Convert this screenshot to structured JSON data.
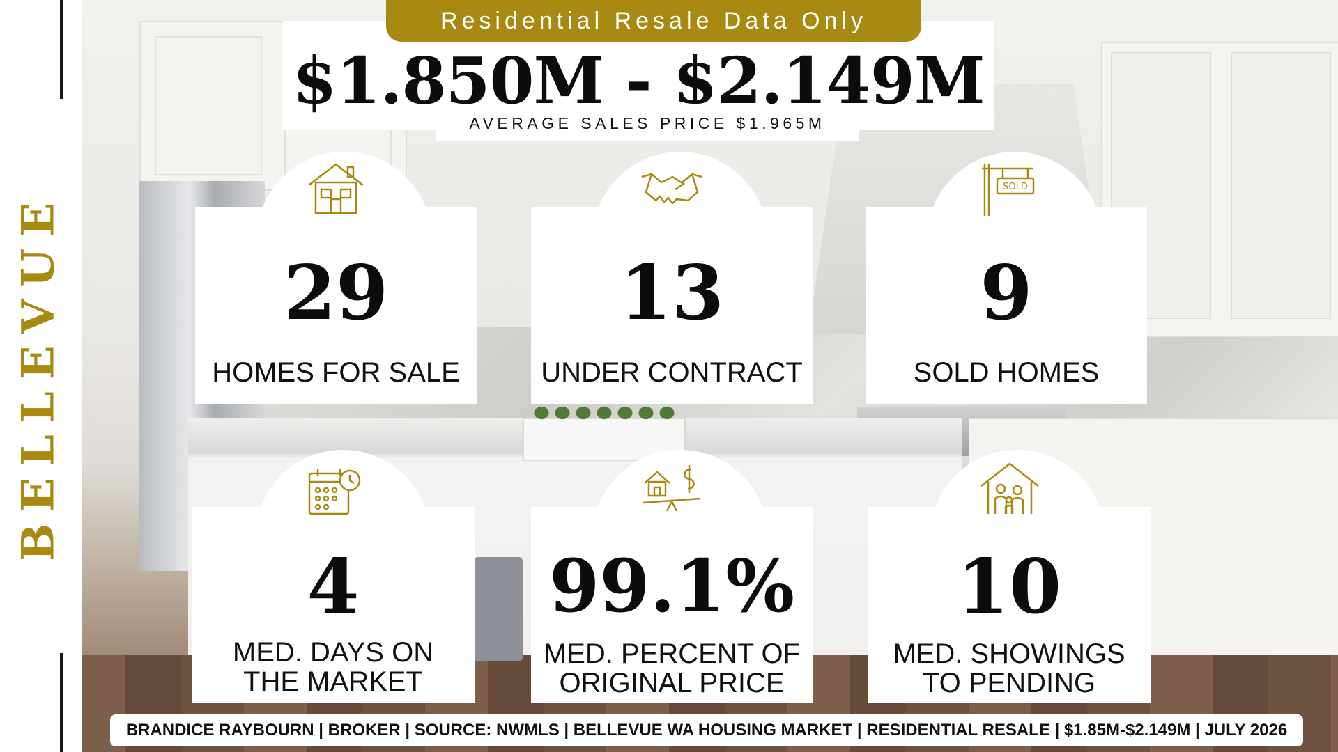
{
  "header": {
    "banner": "Residential Resale Data Only",
    "price_range": "$1.850M - $2.149M",
    "average_price": "AVERAGE SALES PRICE $1.965M"
  },
  "sidebar": {
    "city": "BELLEVUE"
  },
  "colors": {
    "gold": "#a88a12",
    "text": "#0c0c0c",
    "card": "#ffffff"
  },
  "stats": [
    {
      "value": "29",
      "label_line1": "HOMES FOR SALE",
      "label_line2": "",
      "icon": "house-icon"
    },
    {
      "value": "13",
      "label_line1": "UNDER CONTRACT",
      "label_line2": "",
      "icon": "handshake-icon"
    },
    {
      "value": "9",
      "label_line1": "SOLD HOMES",
      "label_line2": "",
      "icon": "sold-sign-icon"
    },
    {
      "value": "4",
      "label_line1": "MED. DAYS ON",
      "label_line2": "THE MARKET",
      "icon": "calendar-clock-icon"
    },
    {
      "value": "99.1%",
      "label_line1": "MED. PERCENT OF",
      "label_line2": "ORIGINAL PRICE",
      "icon": "house-dollar-scale-icon"
    },
    {
      "value": "10",
      "label_line1": "MED. SHOWINGS",
      "label_line2": "TO PENDING",
      "icon": "family-house-icon"
    }
  ],
  "footer": {
    "text": "BRANDICE RAYBOURN | BROKER | SOURCE: NWMLS | BELLEVUE WA HOUSING MARKET | RESIDENTIAL RESALE | $1.85M-$2.149M | JULY 2026"
  }
}
